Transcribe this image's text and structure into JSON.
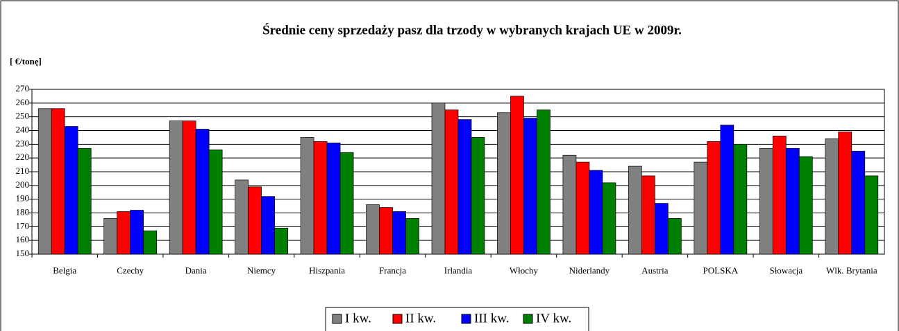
{
  "chart_data": {
    "type": "bar",
    "title": "Średnie ceny sprzedaży pasz dla trzody w wybranych krajach UE w 2009r.",
    "y_label": "[ €/tonę]",
    "categories": [
      "Belgia",
      "Czechy",
      "Dania",
      "Niemcy",
      "Hiszpania",
      "Francja",
      "Irlandia",
      "Włochy",
      "Niderlandy",
      "Austria",
      "POLSKA",
      "Słowacja",
      "Wlk. Brytania"
    ],
    "series": [
      {
        "name": "I kw.",
        "color": "#808080",
        "values": [
          256,
          176,
          247,
          204,
          235,
          186,
          260,
          253,
          222,
          214,
          217,
          227,
          234
        ]
      },
      {
        "name": "II kw.",
        "color": "#ff0000",
        "values": [
          256,
          181,
          247,
          199,
          232,
          184,
          255,
          265,
          217,
          207,
          232,
          236,
          239
        ]
      },
      {
        "name": "III kw.",
        "color": "#0000ff",
        "values": [
          243,
          182,
          241,
          192,
          231,
          181,
          248,
          249,
          211,
          187,
          244,
          227,
          225
        ]
      },
      {
        "name": "IV kw.",
        "color": "#008000",
        "values": [
          227,
          167,
          226,
          169,
          224,
          176,
          235,
          255,
          202,
          176,
          230,
          221,
          207
        ]
      }
    ],
    "ylim": [
      150,
      270
    ],
    "yticks": [
      150,
      160,
      170,
      180,
      190,
      200,
      210,
      220,
      230,
      240,
      250,
      260,
      270
    ],
    "grid": true,
    "legend": "bottom"
  }
}
